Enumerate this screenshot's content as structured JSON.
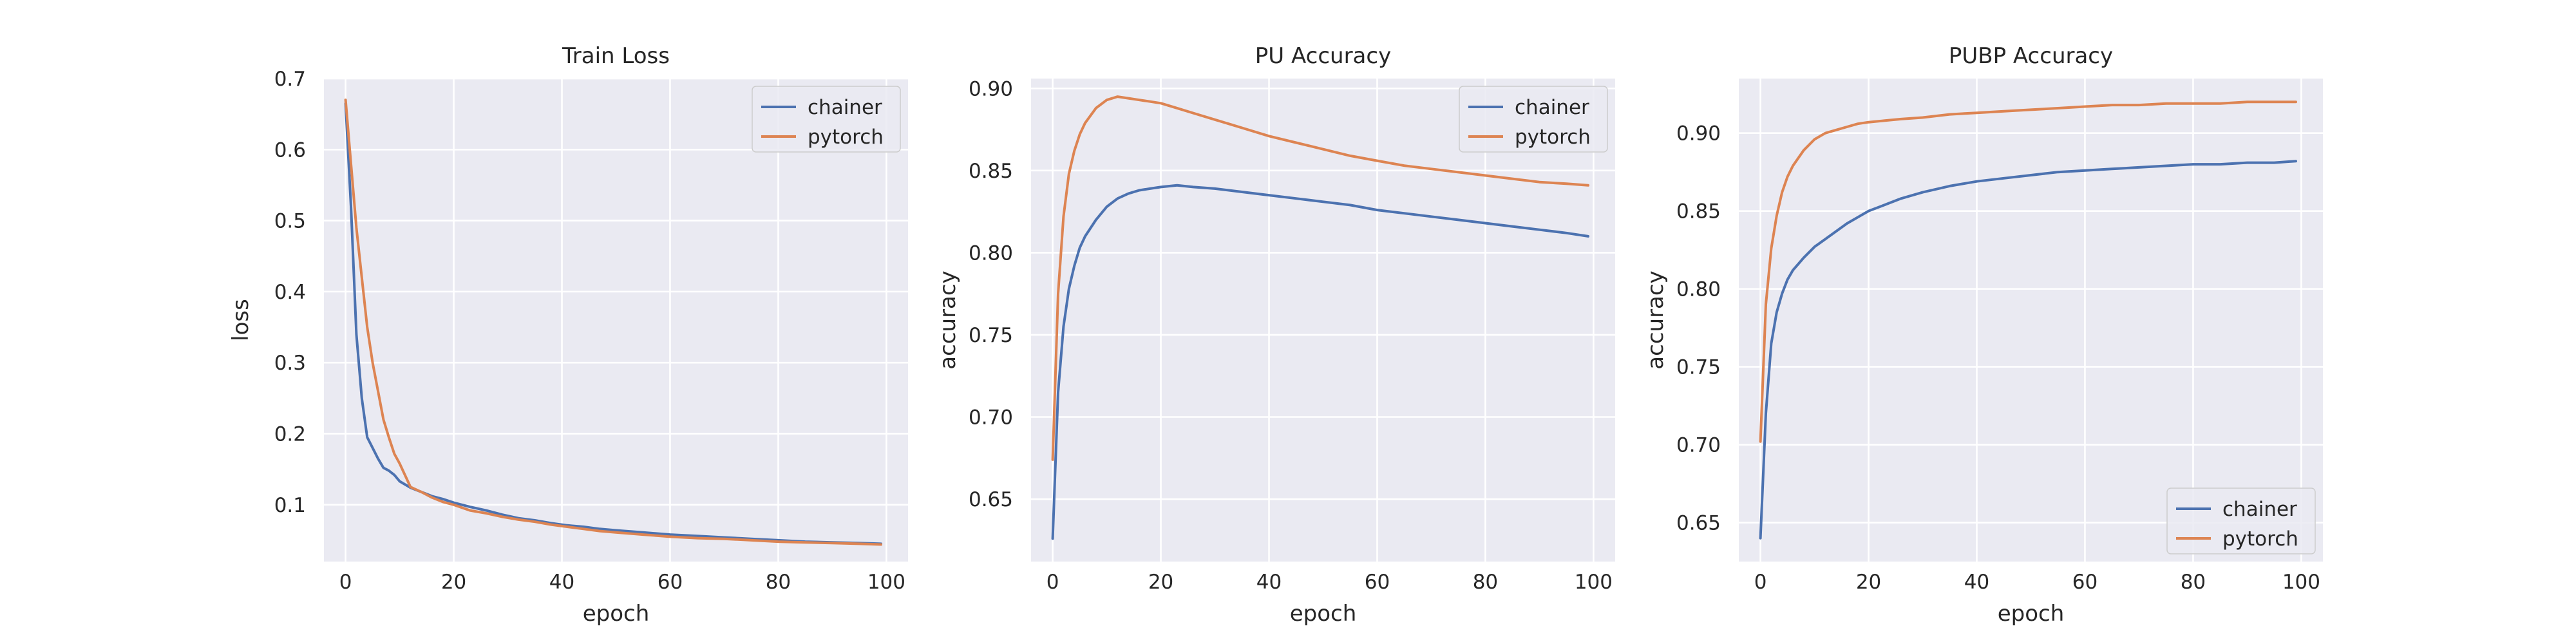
{
  "colors": {
    "chainer": "#4c72b0",
    "pytorch": "#dd8452",
    "background": "#eaeaf2",
    "grid": "#ffffff"
  },
  "chart_data": [
    {
      "type": "line",
      "title": "Train Loss",
      "xlabel": "epoch",
      "ylabel": "loss",
      "xlim": [
        -4,
        104
      ],
      "ylim": [
        0.02,
        0.7
      ],
      "xticks": [
        0,
        20,
        40,
        60,
        80,
        100
      ],
      "yticks": [
        0.1,
        0.2,
        0.3,
        0.4,
        0.5,
        0.6,
        0.7
      ],
      "ytick_format": "1",
      "grid": true,
      "legend": "top-right",
      "x": [
        0,
        1,
        2,
        3,
        4,
        5,
        6,
        7,
        8,
        9,
        10,
        12,
        14,
        16,
        18,
        20,
        23,
        26,
        29,
        32,
        35,
        38,
        41,
        44,
        47,
        50,
        55,
        60,
        65,
        70,
        75,
        80,
        85,
        90,
        95,
        99
      ],
      "series": [
        {
          "name": "chainer",
          "color": "#4c72b0",
          "values": [
            0.665,
            0.52,
            0.34,
            0.25,
            0.195,
            0.18,
            0.165,
            0.152,
            0.148,
            0.142,
            0.133,
            0.124,
            0.118,
            0.112,
            0.108,
            0.103,
            0.097,
            0.092,
            0.086,
            0.081,
            0.078,
            0.074,
            0.071,
            0.069,
            0.066,
            0.064,
            0.061,
            0.058,
            0.056,
            0.054,
            0.052,
            0.05,
            0.048,
            0.047,
            0.046,
            0.045
          ]
        },
        {
          "name": "pytorch",
          "color": "#dd8452",
          "values": [
            0.67,
            0.58,
            0.49,
            0.42,
            0.35,
            0.3,
            0.26,
            0.22,
            0.195,
            0.172,
            0.158,
            0.125,
            0.118,
            0.11,
            0.104,
            0.1,
            0.092,
            0.088,
            0.083,
            0.079,
            0.076,
            0.072,
            0.069,
            0.066,
            0.063,
            0.061,
            0.058,
            0.055,
            0.053,
            0.052,
            0.05,
            0.048,
            0.047,
            0.046,
            0.045,
            0.044
          ]
        }
      ]
    },
    {
      "type": "line",
      "title": "PU Accuracy",
      "xlabel": "epoch",
      "ylabel": "accuracy",
      "xlim": [
        -4,
        104
      ],
      "ylim": [
        0.612,
        0.906
      ],
      "xticks": [
        0,
        20,
        40,
        60,
        80,
        100
      ],
      "yticks": [
        0.65,
        0.7,
        0.75,
        0.8,
        0.85,
        0.9
      ],
      "ytick_format": "2",
      "grid": true,
      "legend": "top-right",
      "x": [
        0,
        1,
        2,
        3,
        4,
        5,
        6,
        8,
        10,
        12,
        14,
        16,
        18,
        20,
        23,
        26,
        30,
        35,
        40,
        45,
        50,
        55,
        60,
        65,
        70,
        75,
        80,
        85,
        90,
        95,
        99
      ],
      "series": [
        {
          "name": "chainer",
          "color": "#4c72b0",
          "values": [
            0.626,
            0.715,
            0.755,
            0.778,
            0.792,
            0.803,
            0.81,
            0.82,
            0.828,
            0.833,
            0.836,
            0.838,
            0.839,
            0.84,
            0.841,
            0.84,
            0.839,
            0.837,
            0.835,
            0.833,
            0.831,
            0.829,
            0.826,
            0.824,
            0.822,
            0.82,
            0.818,
            0.816,
            0.814,
            0.812,
            0.81
          ]
        },
        {
          "name": "pytorch",
          "color": "#dd8452",
          "values": [
            0.674,
            0.775,
            0.822,
            0.848,
            0.862,
            0.872,
            0.879,
            0.888,
            0.893,
            0.895,
            0.894,
            0.893,
            0.892,
            0.891,
            0.888,
            0.885,
            0.881,
            0.876,
            0.871,
            0.867,
            0.863,
            0.859,
            0.856,
            0.853,
            0.851,
            0.849,
            0.847,
            0.845,
            0.843,
            0.842,
            0.841
          ]
        }
      ]
    },
    {
      "type": "line",
      "title": "PUBP Accuracy",
      "xlabel": "epoch",
      "ylabel": "accuracy",
      "xlim": [
        -4,
        104
      ],
      "ylim": [
        0.625,
        0.935
      ],
      "xticks": [
        0,
        20,
        40,
        60,
        80,
        100
      ],
      "yticks": [
        0.65,
        0.7,
        0.75,
        0.8,
        0.85,
        0.9
      ],
      "ytick_format": "2",
      "grid": true,
      "legend": "lower-right",
      "x": [
        0,
        1,
        2,
        3,
        4,
        5,
        6,
        8,
        10,
        12,
        14,
        16,
        18,
        20,
        23,
        26,
        30,
        35,
        40,
        45,
        50,
        55,
        60,
        65,
        70,
        75,
        80,
        85,
        90,
        95,
        99
      ],
      "series": [
        {
          "name": "chainer",
          "color": "#4c72b0",
          "values": [
            0.64,
            0.72,
            0.765,
            0.785,
            0.797,
            0.806,
            0.812,
            0.82,
            0.827,
            0.832,
            0.837,
            0.842,
            0.846,
            0.85,
            0.854,
            0.858,
            0.862,
            0.866,
            0.869,
            0.871,
            0.873,
            0.875,
            0.876,
            0.877,
            0.878,
            0.879,
            0.88,
            0.88,
            0.881,
            0.881,
            0.882
          ]
        },
        {
          "name": "pytorch",
          "color": "#dd8452",
          "values": [
            0.702,
            0.79,
            0.826,
            0.847,
            0.862,
            0.872,
            0.879,
            0.889,
            0.896,
            0.9,
            0.902,
            0.904,
            0.906,
            0.907,
            0.908,
            0.909,
            0.91,
            0.912,
            0.913,
            0.914,
            0.915,
            0.916,
            0.917,
            0.918,
            0.918,
            0.919,
            0.919,
            0.919,
            0.92,
            0.92,
            0.92
          ]
        }
      ]
    }
  ]
}
